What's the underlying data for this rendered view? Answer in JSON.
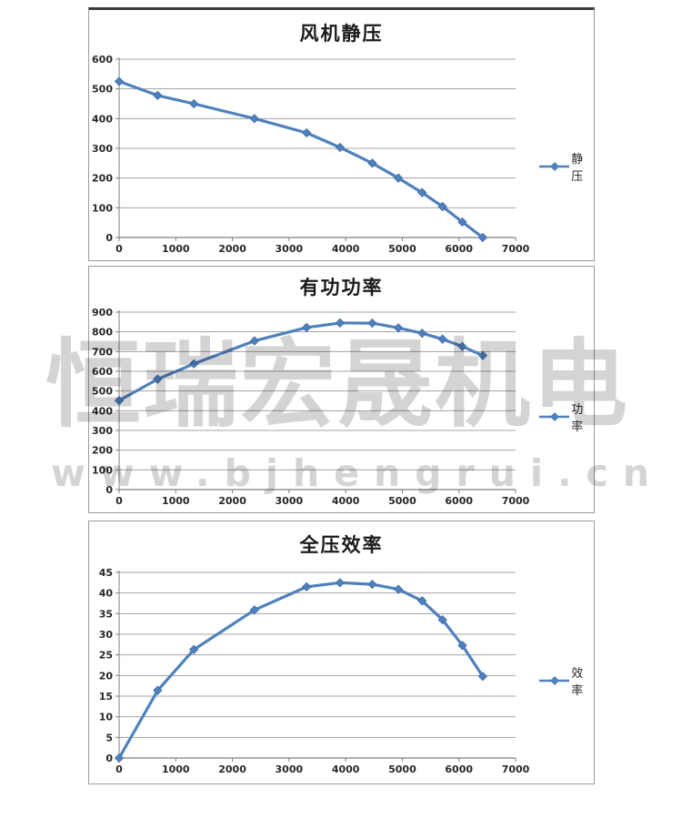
{
  "watermark": {
    "brand_text": "恒瑞宏晟机电",
    "url_text": "www.bjhengrui.cn",
    "color": "#d4d4d4"
  },
  "colors": {
    "series_blue": "#4f81bd",
    "series_blue_dark": "#3f6da8",
    "gridline": "#a3a3a3",
    "axis": "#7f7f7f",
    "label": "#262626"
  },
  "chart_data": [
    {
      "type": "line",
      "title": "风机静压",
      "marker": "diamond",
      "grid": true,
      "legend_position": "right",
      "x": [
        0,
        680,
        1320,
        2390,
        3310,
        3900,
        4470,
        4930,
        5350,
        5710,
        6060,
        6420
      ],
      "series": [
        {
          "name": "静压",
          "values": [
            525,
            478,
            450,
            400,
            352,
            303,
            250,
            200,
            151,
            104,
            52,
            0
          ]
        }
      ],
      "xlim": [
        0,
        7000
      ],
      "ylim": [
        0,
        600
      ],
      "x_ticks": [
        0,
        1000,
        2000,
        3000,
        4000,
        5000,
        6000,
        7000
      ],
      "y_ticks": [
        0,
        100,
        200,
        300,
        400,
        500,
        600
      ],
      "xlabel": "",
      "ylabel": ""
    },
    {
      "type": "line",
      "title": "有功功率",
      "marker": "diamond",
      "grid": true,
      "legend_position": "right",
      "x": [
        0,
        680,
        1320,
        2390,
        3310,
        3900,
        4470,
        4930,
        5350,
        5710,
        6060,
        6420
      ],
      "series": [
        {
          "name": "功率",
          "values": [
            452,
            560,
            638,
            754,
            822,
            845,
            844,
            820,
            793,
            763,
            726,
            680
          ]
        }
      ],
      "xlim": [
        0,
        7000
      ],
      "ylim": [
        0,
        900
      ],
      "x_ticks": [
        0,
        1000,
        2000,
        3000,
        4000,
        5000,
        6000,
        7000
      ],
      "y_ticks": [
        0,
        100,
        200,
        300,
        400,
        500,
        600,
        700,
        800,
        900
      ],
      "xlabel": "",
      "ylabel": ""
    },
    {
      "type": "line",
      "title": "全压效率",
      "marker": "diamond",
      "grid": true,
      "legend_position": "right",
      "x": [
        0,
        680,
        1320,
        2390,
        3310,
        3900,
        4470,
        4930,
        5350,
        5710,
        6060,
        6420
      ],
      "series": [
        {
          "name": "效率",
          "values": [
            0,
            16.4,
            26.3,
            35.9,
            41.5,
            42.5,
            42.1,
            40.9,
            38.1,
            33.5,
            27.3,
            19.8
          ]
        }
      ],
      "xlim": [
        0,
        7000
      ],
      "ylim": [
        0,
        45
      ],
      "x_ticks": [
        0,
        1000,
        2000,
        3000,
        4000,
        5000,
        6000,
        7000
      ],
      "y_ticks": [
        0,
        5,
        10,
        15,
        20,
        25,
        30,
        35,
        40,
        45
      ],
      "xlabel": "",
      "ylabel": ""
    }
  ]
}
